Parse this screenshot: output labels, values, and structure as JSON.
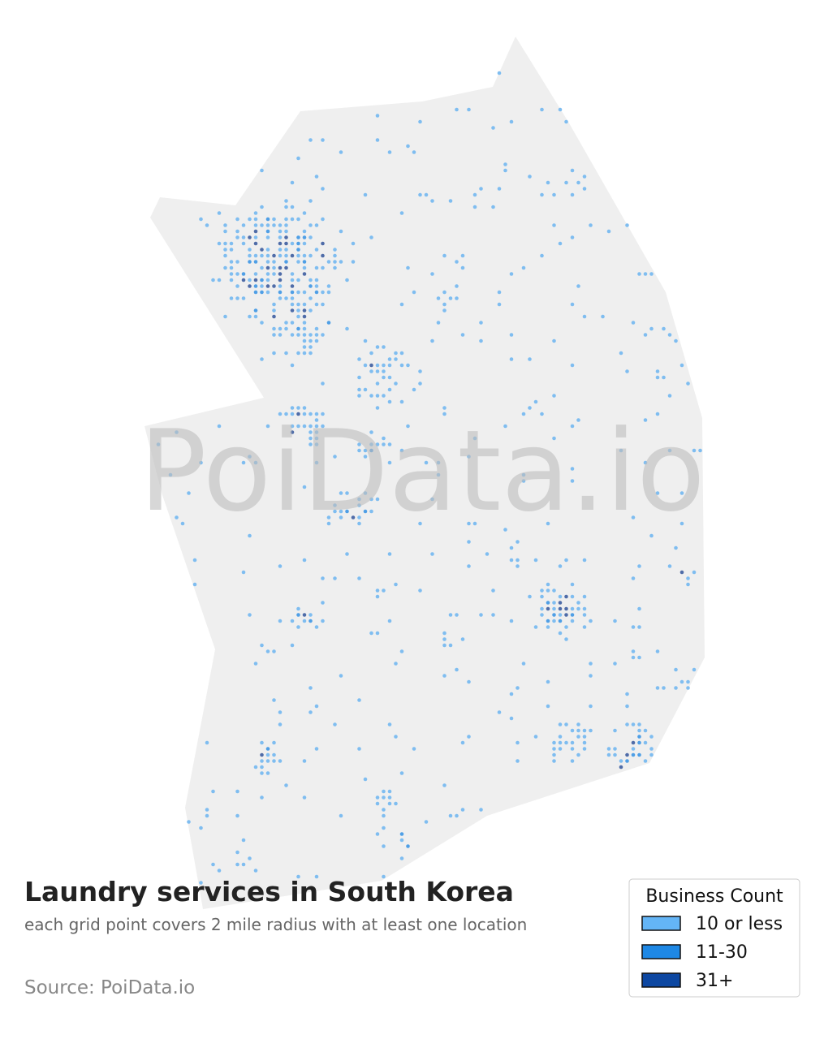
{
  "title": "Laundry services in South Korea",
  "subtitle": "each grid point covers 2 mile radius with at least one location",
  "source": "Source: PoiData.io",
  "watermark": "PoiData.io",
  "legend": {
    "title": "Business Count",
    "items": [
      {
        "label": "10 or less",
        "color": "#64b5f6"
      },
      {
        "label": "11-30",
        "color": "#1e88e5"
      },
      {
        "label": "31+",
        "color": "#0d47a1"
      }
    ]
  }
}
